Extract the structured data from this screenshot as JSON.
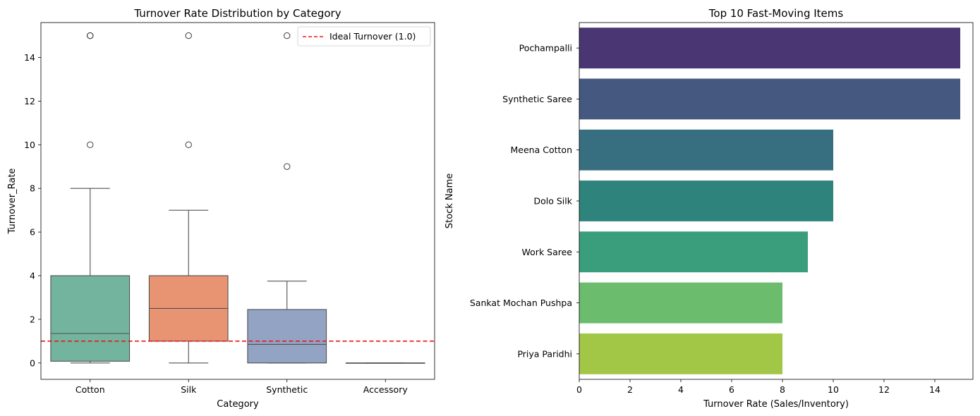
{
  "chart_data": [
    {
      "type": "box",
      "title": "Turnover Rate Distribution by Category",
      "xlabel": "Category",
      "ylabel": "Turnover_Rate",
      "ylim": [
        -0.75,
        15.6
      ],
      "yticks": [
        0,
        2,
        4,
        6,
        8,
        10,
        12,
        14
      ],
      "grid": false,
      "legend": {
        "position": "top-right",
        "entries": [
          "Ideal Turnover (1.0)"
        ]
      },
      "reference_line": {
        "label": "Ideal Turnover (1.0)",
        "value": 1.0,
        "color": "#e8171a",
        "style": "dashed"
      },
      "categories": [
        "Cotton",
        "Silk",
        "Synthetic",
        "Accessory"
      ],
      "boxes": [
        {
          "category": "Cotton",
          "color": "#73b49f",
          "min": 0,
          "q1": 0.08,
          "median": 1.35,
          "q3": 4.0,
          "max": 8.0,
          "outliers": [
            10,
            15,
            15
          ]
        },
        {
          "category": "Silk",
          "color": "#e89473",
          "min": 0,
          "q1": 1.0,
          "median": 2.5,
          "q3": 4.0,
          "max": 7.0,
          "outliers": [
            10,
            15
          ]
        },
        {
          "category": "Synthetic",
          "color": "#93a3c4",
          "min": 0,
          "q1": 0,
          "median": 0.85,
          "q3": 2.45,
          "max": 3.75,
          "outliers": [
            9,
            15
          ]
        },
        {
          "category": "Accessory",
          "color": "#d9a0c7",
          "min": 0,
          "q1": 0,
          "median": 0,
          "q3": 0,
          "max": 0,
          "outliers": []
        }
      ]
    },
    {
      "type": "bar",
      "orientation": "horizontal",
      "title": "Top 10 Fast-Moving Items",
      "xlabel": "Turnover Rate (Sales/Inventory)",
      "ylabel": "Stock Name",
      "xlim": [
        0,
        15.5
      ],
      "xticks": [
        0,
        2,
        4,
        6,
        8,
        10,
        12,
        14
      ],
      "grid": false,
      "categories": [
        "Pochampalli",
        "Synthetic Saree",
        "Meena Cotton",
        "Dolo Silk",
        "Work Saree",
        "Sankat Mochan Pushpa",
        "Priya Paridhi"
      ],
      "values": [
        15,
        15,
        10,
        10,
        9,
        8,
        8
      ],
      "colors": [
        "#4a3672",
        "#45587f",
        "#386f80",
        "#2e837c",
        "#3a9e7c",
        "#6bbd6d",
        "#a2c747"
      ]
    }
  ]
}
